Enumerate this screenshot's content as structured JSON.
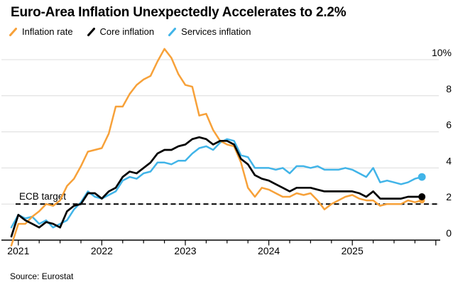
{
  "header": {
    "title": "Euro-Area Inflation Unexpectedly Accelerates to 2.2%"
  },
  "legend": [
    {
      "label": "Inflation rate",
      "color": "#F7A139"
    },
    {
      "label": "Core inflation",
      "color": "#000000"
    },
    {
      "label": "Services inflation",
      "color": "#41B4E8"
    }
  ],
  "source": "Source: Eurostat",
  "chart_data": {
    "type": "line",
    "title": "Euro-Area Inflation Unexpectedly Accelerates to 2.2%",
    "unit": "percent, year-over-year",
    "x_frequency": "monthly",
    "grid": "horizontal",
    "legend_position": "top",
    "ylim": [
      0,
      10
    ],
    "x_tick_labels": [
      "2021",
      "2022",
      "2023",
      "2024",
      "2025"
    ],
    "y_ticks": [
      {
        "value": 10,
        "label": "10%"
      },
      {
        "value": 8,
        "label": "8"
      },
      {
        "value": 6,
        "label": "6"
      },
      {
        "value": 4,
        "label": "4"
      },
      {
        "value": 2,
        "label": "2"
      },
      {
        "value": 0,
        "label": "0"
      }
    ],
    "annotation": {
      "label": "ECB target",
      "value": 2,
      "style": "dashed"
    },
    "x": [
      "2020-12",
      "2021-01",
      "2021-02",
      "2021-03",
      "2021-04",
      "2021-05",
      "2021-06",
      "2021-07",
      "2021-08",
      "2021-09",
      "2021-10",
      "2021-11",
      "2021-12",
      "2022-01",
      "2022-02",
      "2022-03",
      "2022-04",
      "2022-05",
      "2022-06",
      "2022-07",
      "2022-08",
      "2022-09",
      "2022-10",
      "2022-11",
      "2022-12",
      "2023-01",
      "2023-02",
      "2023-03",
      "2023-04",
      "2023-05",
      "2023-06",
      "2023-07",
      "2023-08",
      "2023-09",
      "2023-10",
      "2023-11",
      "2023-12",
      "2024-01",
      "2024-02",
      "2024-03",
      "2024-04",
      "2024-05",
      "2024-06",
      "2024-07",
      "2024-08",
      "2024-09",
      "2024-10",
      "2024-11",
      "2024-12",
      "2025-01",
      "2025-02",
      "2025-03",
      "2025-04",
      "2025-05",
      "2025-06",
      "2025-07",
      "2025-08",
      "2025-09",
      "2025-10",
      "2025-11"
    ],
    "series": [
      {
        "name": "Inflation rate",
        "color": "#F7A139",
        "end_dot": true,
        "values": [
          -0.3,
          0.9,
          0.9,
          1.3,
          1.6,
          2.0,
          1.9,
          2.2,
          3.0,
          3.4,
          4.1,
          4.9,
          5.0,
          5.1,
          5.9,
          7.4,
          7.4,
          8.1,
          8.6,
          8.9,
          9.1,
          9.9,
          10.6,
          10.1,
          9.2,
          8.6,
          8.5,
          6.9,
          7.0,
          6.1,
          5.5,
          5.3,
          5.2,
          4.3,
          2.9,
          2.4,
          2.9,
          2.8,
          2.6,
          2.4,
          2.4,
          2.6,
          2.5,
          2.6,
          2.2,
          1.7,
          2.0,
          2.2,
          2.4,
          2.5,
          2.3,
          2.2,
          2.2,
          1.9,
          2.0,
          2.0,
          2.0,
          2.2,
          2.1,
          2.2
        ]
      },
      {
        "name": "Core inflation",
        "color": "#000000",
        "end_dot": true,
        "values": [
          0.2,
          1.4,
          1.1,
          0.9,
          0.7,
          1.0,
          0.9,
          0.7,
          1.6,
          1.9,
          2.0,
          2.6,
          2.6,
          2.3,
          2.7,
          2.9,
          3.5,
          3.8,
          3.7,
          4.0,
          4.3,
          4.8,
          5.0,
          5.0,
          5.2,
          5.3,
          5.6,
          5.7,
          5.6,
          5.3,
          5.5,
          5.5,
          5.3,
          4.5,
          4.2,
          3.6,
          3.4,
          3.3,
          3.1,
          2.9,
          2.7,
          2.9,
          2.9,
          2.9,
          2.8,
          2.7,
          2.7,
          2.7,
          2.7,
          2.7,
          2.6,
          2.4,
          2.7,
          2.3,
          2.3,
          2.3,
          2.3,
          2.4,
          2.4,
          2.4
        ]
      },
      {
        "name": "Services inflation",
        "color": "#41B4E8",
        "end_dot": true,
        "values": [
          0.7,
          1.4,
          1.2,
          1.3,
          0.9,
          1.1,
          0.7,
          0.9,
          1.1,
          1.7,
          2.1,
          2.7,
          2.4,
          2.3,
          2.5,
          2.7,
          3.3,
          3.5,
          3.4,
          3.7,
          3.8,
          4.3,
          4.3,
          4.2,
          4.4,
          4.4,
          4.8,
          5.1,
          5.2,
          5.0,
          5.4,
          5.6,
          5.5,
          4.7,
          4.6,
          4.0,
          4.0,
          4.0,
          3.9,
          4.0,
          3.7,
          4.1,
          4.1,
          4.0,
          4.1,
          3.9,
          3.9,
          3.9,
          4.0,
          3.9,
          3.7,
          3.5,
          4.0,
          3.2,
          3.3,
          3.2,
          3.1,
          3.2,
          3.4,
          3.5
        ]
      }
    ]
  }
}
